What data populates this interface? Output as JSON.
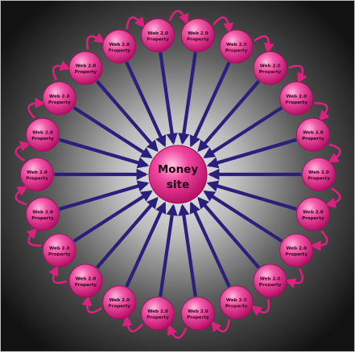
{
  "center": {
    "line1": "Money",
    "line2": "site"
  },
  "node_label_line1": "Web 2.0",
  "node_label_line2": "Property",
  "node_count": 22,
  "colors": {
    "background_outer": "#141414",
    "background_glow": "#e6e6e6",
    "arrow": "#2a1f7a",
    "node_fill": "#e81f8c",
    "node_highlight": "#ff9fd0",
    "link_curve": "#e0207f",
    "frame": "#bdbdbd"
  }
}
